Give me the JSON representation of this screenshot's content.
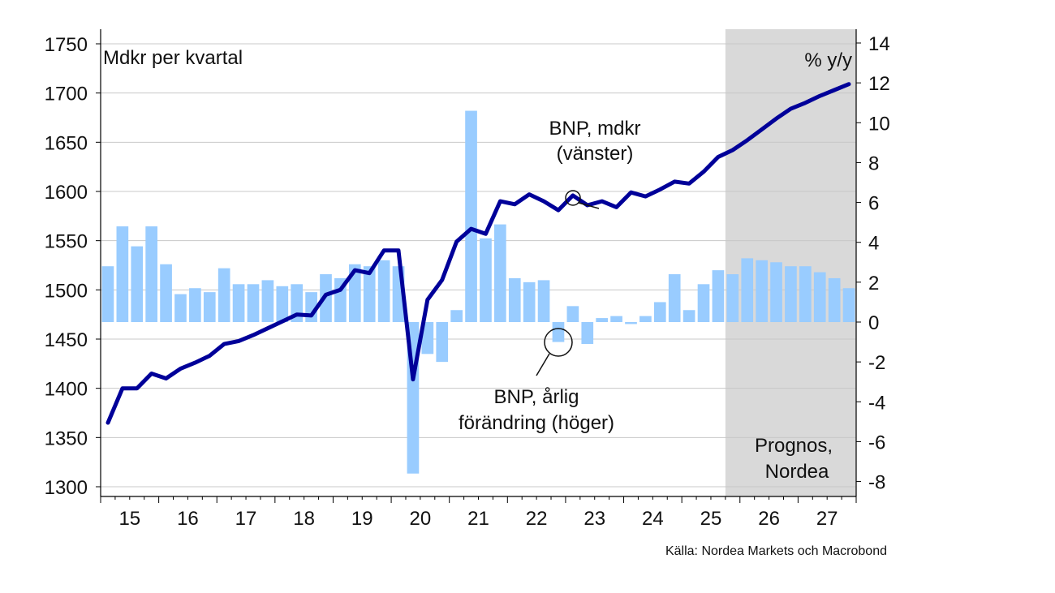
{
  "chart_data": {
    "type": "bar+line",
    "left_unit": "Mdkr per kvartal",
    "right_unit": "% y/y",
    "x_tick_labels": [
      "15",
      "16",
      "17",
      "18",
      "19",
      "20",
      "21",
      "22",
      "23",
      "24",
      "25",
      "26",
      "27"
    ],
    "left_axis": {
      "ylim": [
        1300,
        1750
      ],
      "ticks": [
        1300,
        1350,
        1400,
        1450,
        1500,
        1550,
        1600,
        1650,
        1700,
        1750
      ]
    },
    "right_axis": {
      "ylim": [
        -8,
        14
      ],
      "ticks": [
        -8,
        -6,
        -4,
        -2,
        0,
        2,
        4,
        6,
        8,
        10,
        12,
        14
      ]
    },
    "grid": "horizontal",
    "quarters": [
      "2015Q1",
      "2015Q2",
      "2015Q3",
      "2015Q4",
      "2016Q1",
      "2016Q2",
      "2016Q3",
      "2016Q4",
      "2017Q1",
      "2017Q2",
      "2017Q3",
      "2017Q4",
      "2018Q1",
      "2018Q2",
      "2018Q3",
      "2018Q4",
      "2019Q1",
      "2019Q2",
      "2019Q3",
      "2019Q4",
      "2020Q1",
      "2020Q2",
      "2020Q3",
      "2020Q4",
      "2021Q1",
      "2021Q2",
      "2021Q3",
      "2021Q4",
      "2022Q1",
      "2022Q2",
      "2022Q3",
      "2022Q4",
      "2023Q1",
      "2023Q2",
      "2023Q3",
      "2023Q4",
      "2024Q1",
      "2024Q2",
      "2024Q3",
      "2024Q4",
      "2025Q1",
      "2025Q2",
      "2025Q3",
      "2025Q4",
      "2026Q1",
      "2026Q2",
      "2026Q3",
      "2026Q4",
      "2027Q1",
      "2027Q2",
      "2027Q3",
      "2027Q4"
    ],
    "series": [
      {
        "name": "BNP, årlig förändring (höger)",
        "type": "bar",
        "axis": "right",
        "color": "#99ccff",
        "values": [
          2.8,
          4.8,
          3.8,
          4.8,
          2.9,
          1.4,
          1.7,
          1.5,
          2.7,
          1.9,
          1.9,
          2.1,
          1.8,
          1.9,
          1.5,
          2.4,
          2.2,
          2.9,
          2.8,
          3.1,
          2.8,
          -7.6,
          -1.6,
          -2.0,
          0.6,
          10.6,
          4.2,
          4.9,
          2.2,
          2.0,
          2.1,
          -1.0,
          0.8,
          -1.1,
          0.2,
          0.3,
          -0.1,
          0.3,
          1.0,
          2.4,
          0.6,
          1.9,
          2.6,
          2.4,
          3.2,
          3.1,
          3.0,
          2.8,
          2.8,
          2.5,
          2.2,
          1.7
        ]
      },
      {
        "name": "BNP, mdkr (vänster)",
        "type": "line",
        "axis": "left",
        "color": "#000099",
        "values": [
          1365,
          1400,
          1400,
          1415,
          1410,
          1420,
          1426,
          1433,
          1445,
          1448,
          1454,
          1461,
          1468,
          1475,
          1474,
          1495,
          1500,
          1520,
          1517,
          1540,
          1540,
          1409,
          1490,
          1510,
          1549,
          1562,
          1557,
          1590,
          1587,
          1597,
          1590,
          1581,
          1596,
          1586,
          1590,
          1584,
          1599,
          1595,
          1602,
          1610,
          1608,
          1620,
          1635,
          1642,
          1652,
          1663,
          1674,
          1684,
          1690,
          1697,
          1703,
          1709
        ]
      }
    ],
    "forecast_region": {
      "from": "2025Q4",
      "to": "2027Q4",
      "label_line1": "Prognos,",
      "label_line2": "Nordea",
      "color": "#d9d9d9"
    },
    "annotations": {
      "line_label_1": "BNP, mdkr",
      "line_label_2": "(vänster)",
      "bar_label_1": "BNP, årlig",
      "bar_label_2": "förändring (höger)"
    },
    "source": "Källa: Nordea Markets och Macrobond"
  }
}
